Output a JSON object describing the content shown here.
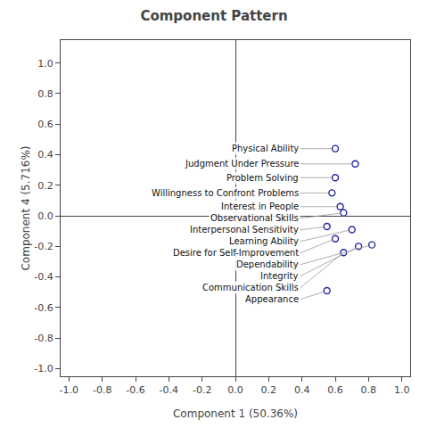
{
  "chart_data": {
    "type": "scatter",
    "title": "Component Pattern",
    "xlabel": "Component 1 (50.36%)",
    "ylabel": "Component 4 (5.716%)",
    "labels": [
      "Physical Ability",
      "Judgment Under Pressure",
      "Problem Solving",
      "Willingness to Confront Problems",
      "Interest in People",
      "Observational Skills",
      "Interpersonal Sensitivity",
      "Learning Ability",
      "Desire for Self-Improvement",
      "Integrity",
      "Dependability",
      "Communication Skills",
      "Appearance"
    ],
    "x": [
      0.6,
      0.72,
      0.6,
      0.58,
      0.63,
      0.65,
      0.55,
      0.7,
      0.6,
      0.74,
      0.82,
      0.65,
      0.55
    ],
    "values": [
      0.44,
      0.34,
      0.25,
      0.15,
      0.06,
      0.02,
      -0.07,
      -0.09,
      -0.15,
      -0.2,
      -0.19,
      -0.24,
      -0.49
    ],
    "color": "#2222aa",
    "marker": "circle-open",
    "xlim": [
      -1.05,
      1.05
    ],
    "ylim": [
      -1.05,
      1.15
    ],
    "xticks": [
      {
        "value": -1.0,
        "label": "-1.0"
      },
      -0.8,
      -0.6,
      -0.4,
      -0.2,
      {
        "value": 0.0,
        "label": "0.0"
      },
      0.2,
      0.4,
      0.6,
      0.8,
      {
        "value": 1.0,
        "label": "1.0"
      }
    ],
    "yticks": [
      {
        "value": -1.0,
        "label": "-1.0"
      },
      -0.8,
      -0.6,
      -0.4,
      -0.2,
      {
        "value": 0.0,
        "label": "0.0"
      },
      0.2,
      0.4,
      0.6,
      0.8,
      {
        "value": 1.0,
        "label": "1.0"
      }
    ],
    "grid": false
  }
}
